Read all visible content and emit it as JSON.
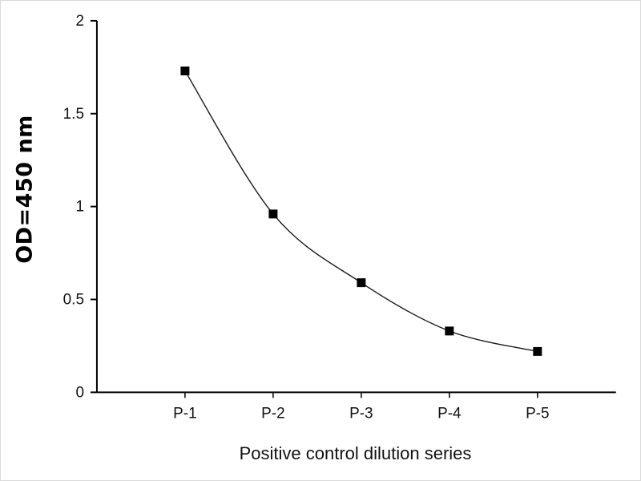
{
  "chart_data": {
    "type": "line",
    "categories": [
      "P-1",
      "P-2",
      "P-3",
      "P-4",
      "P-5"
    ],
    "values": [
      1.73,
      0.96,
      0.59,
      0.33,
      0.22
    ],
    "series": [
      {
        "name": "Positive control",
        "values": [
          1.73,
          0.96,
          0.59,
          0.33,
          0.22
        ]
      }
    ],
    "title": "",
    "xlabel": "Positive control dilution series",
    "ylabel": "OD=450 nm",
    "ylim": [
      0,
      2
    ],
    "yticks": [
      0,
      0.5,
      1,
      1.5,
      2
    ],
    "ytick_labels": [
      "0",
      "0.5",
      "1",
      "1.5",
      "2"
    ],
    "grid": false,
    "legend_position": "none",
    "marker": "square",
    "line_color": "#1a1a1a",
    "marker_color": "#000000",
    "axis_color": "#000000",
    "background_color": "#ffffff"
  }
}
